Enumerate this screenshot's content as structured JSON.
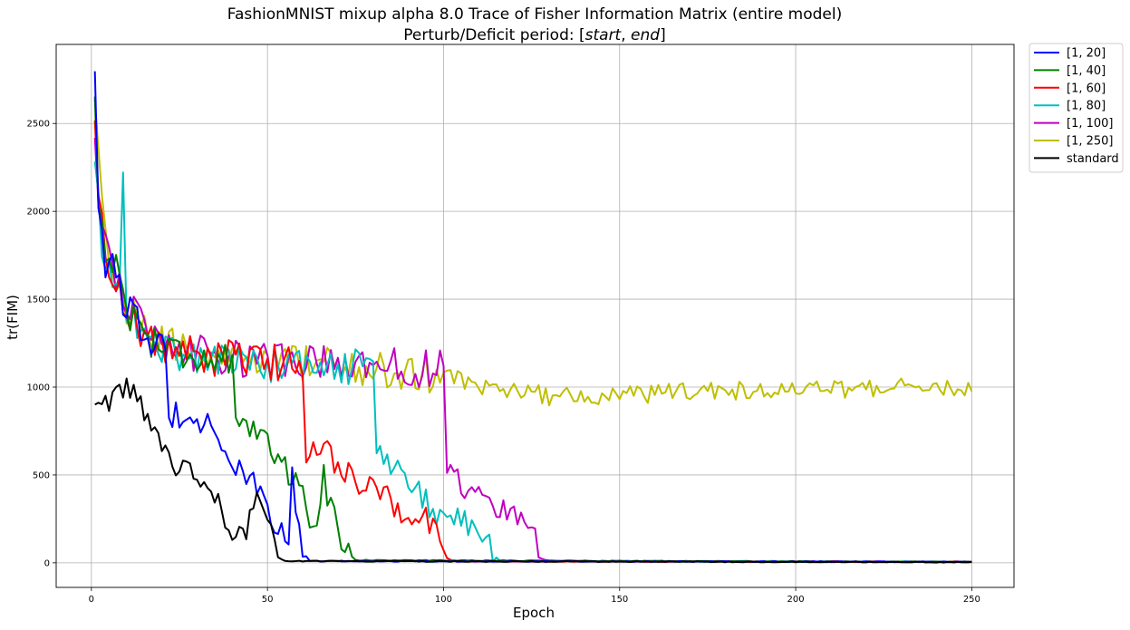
{
  "chart_data": {
    "type": "line",
    "title_line1": "FashionMNIST mixup alpha 8.0 Trace of Fisher Information Matrix (entire model)",
    "title_line2_prefix": "Perturb/Deficit period: [",
    "title_line2_start": "start",
    "title_line2_sep": ", ",
    "title_line2_end": "end",
    "title_line2_suffix": "]",
    "xlabel": "Epoch",
    "ylabel": "tr(FIM)",
    "xlim": [
      -10,
      262
    ],
    "ylim": [
      -140,
      2950
    ],
    "xticks": [
      0,
      50,
      100,
      150,
      200,
      250
    ],
    "yticks": [
      0,
      500,
      1000,
      1500,
      2000,
      2500
    ],
    "grid": true,
    "legend_position": "outside-top-right",
    "series": [
      {
        "name": "[1, 20]",
        "color": "#0000ff",
        "deficit_end": 20,
        "anchors": [
          [
            1,
            2810
          ],
          [
            2,
            2100
          ],
          [
            4,
            1720
          ],
          [
            6,
            1650
          ],
          [
            8,
            1600
          ],
          [
            10,
            1420
          ],
          [
            12,
            1400
          ],
          [
            14,
            1330
          ],
          [
            16,
            1270
          ],
          [
            18,
            1240
          ],
          [
            20,
            1210
          ],
          [
            21,
            1190
          ],
          [
            22,
            800
          ],
          [
            24,
            860
          ],
          [
            26,
            820
          ],
          [
            28,
            900
          ],
          [
            30,
            800
          ],
          [
            32,
            820
          ],
          [
            34,
            790
          ],
          [
            36,
            720
          ],
          [
            38,
            640
          ],
          [
            40,
            560
          ],
          [
            42,
            510
          ],
          [
            44,
            490
          ],
          [
            46,
            440
          ],
          [
            48,
            380
          ],
          [
            50,
            320
          ],
          [
            52,
            240
          ],
          [
            54,
            180
          ],
          [
            56,
            150
          ],
          [
            57,
            470
          ],
          [
            58,
            340
          ],
          [
            59,
            150
          ],
          [
            60,
            60
          ],
          [
            62,
            10
          ],
          [
            250,
            5
          ]
        ]
      },
      {
        "name": "[1, 40]",
        "color": "#008000",
        "deficit_end": 40,
        "anchors": [
          [
            1,
            2650
          ],
          [
            2,
            2050
          ],
          [
            4,
            1780
          ],
          [
            6,
            1740
          ],
          [
            8,
            1600
          ],
          [
            10,
            1480
          ],
          [
            12,
            1380
          ],
          [
            14,
            1330
          ],
          [
            16,
            1290
          ],
          [
            20,
            1240
          ],
          [
            24,
            1220
          ],
          [
            28,
            1190
          ],
          [
            32,
            1170
          ],
          [
            36,
            1160
          ],
          [
            40,
            1150
          ],
          [
            41,
            760
          ],
          [
            42,
            710
          ],
          [
            44,
            780
          ],
          [
            46,
            740
          ],
          [
            48,
            780
          ],
          [
            50,
            720
          ],
          [
            52,
            640
          ],
          [
            54,
            560
          ],
          [
            56,
            510
          ],
          [
            58,
            480
          ],
          [
            60,
            470
          ],
          [
            61,
            300
          ],
          [
            63,
            240
          ],
          [
            65,
            320
          ],
          [
            66,
            490
          ],
          [
            67,
            380
          ],
          [
            69,
            260
          ],
          [
            71,
            150
          ],
          [
            73,
            60
          ],
          [
            75,
            15
          ],
          [
            250,
            5
          ]
        ]
      },
      {
        "name": "[1, 60]",
        "color": "#ff0000",
        "deficit_end": 60,
        "anchors": [
          [
            1,
            2500
          ],
          [
            2,
            2050
          ],
          [
            4,
            1780
          ],
          [
            6,
            1640
          ],
          [
            8,
            1560
          ],
          [
            10,
            1460
          ],
          [
            12,
            1380
          ],
          [
            14,
            1320
          ],
          [
            16,
            1280
          ],
          [
            20,
            1230
          ],
          [
            30,
            1180
          ],
          [
            40,
            1160
          ],
          [
            50,
            1140
          ],
          [
            60,
            1130
          ],
          [
            61,
            620
          ],
          [
            63,
            640
          ],
          [
            65,
            680
          ],
          [
            67,
            640
          ],
          [
            69,
            580
          ],
          [
            71,
            560
          ],
          [
            73,
            500
          ],
          [
            75,
            470
          ],
          [
            77,
            440
          ],
          [
            79,
            420
          ],
          [
            81,
            400
          ],
          [
            83,
            380
          ],
          [
            85,
            350
          ],
          [
            87,
            320
          ],
          [
            89,
            280
          ],
          [
            91,
            230
          ],
          [
            93,
            180
          ],
          [
            95,
            250
          ],
          [
            97,
            220
          ],
          [
            99,
            150
          ],
          [
            100,
            60
          ],
          [
            101,
            25
          ],
          [
            103,
            8
          ],
          [
            250,
            5
          ]
        ]
      },
      {
        "name": "[1, 80]",
        "color": "#00bfbf",
        "deficit_end": 80,
        "anchors": [
          [
            1,
            2250
          ],
          [
            2,
            2000
          ],
          [
            4,
            1680
          ],
          [
            6,
            1600
          ],
          [
            8,
            1520
          ],
          [
            9,
            2200
          ],
          [
            10,
            1450
          ],
          [
            12,
            1380
          ],
          [
            14,
            1310
          ],
          [
            16,
            1260
          ],
          [
            20,
            1220
          ],
          [
            30,
            1170
          ],
          [
            40,
            1150
          ],
          [
            50,
            1130
          ],
          [
            60,
            1120
          ],
          [
            70,
            1110
          ],
          [
            80,
            1100
          ],
          [
            81,
            600
          ],
          [
            83,
            620
          ],
          [
            85,
            560
          ],
          [
            87,
            520
          ],
          [
            89,
            480
          ],
          [
            91,
            440
          ],
          [
            93,
            400
          ],
          [
            95,
            350
          ],
          [
            97,
            300
          ],
          [
            99,
            280
          ],
          [
            101,
            260
          ],
          [
            103,
            240
          ],
          [
            105,
            230
          ],
          [
            107,
            220
          ],
          [
            109,
            210
          ],
          [
            111,
            190
          ],
          [
            113,
            150
          ],
          [
            114,
            50
          ],
          [
            116,
            10
          ],
          [
            250,
            5
          ]
        ]
      },
      {
        "name": "[1, 100]",
        "color": "#bf00bf",
        "deficit_end": 100,
        "anchors": [
          [
            1,
            2370
          ],
          [
            2,
            2100
          ],
          [
            4,
            1850
          ],
          [
            6,
            1700
          ],
          [
            8,
            1600
          ],
          [
            10,
            1500
          ],
          [
            12,
            1420
          ],
          [
            14,
            1340
          ],
          [
            16,
            1280
          ],
          [
            20,
            1230
          ],
          [
            30,
            1190
          ],
          [
            40,
            1160
          ],
          [
            50,
            1150
          ],
          [
            60,
            1140
          ],
          [
            70,
            1130
          ],
          [
            80,
            1120
          ],
          [
            90,
            1110
          ],
          [
            100,
            1100
          ],
          [
            101,
            560
          ],
          [
            103,
            470
          ],
          [
            105,
            450
          ],
          [
            107,
            420
          ],
          [
            109,
            400
          ],
          [
            111,
            380
          ],
          [
            113,
            360
          ],
          [
            115,
            330
          ],
          [
            117,
            300
          ],
          [
            119,
            290
          ],
          [
            121,
            270
          ],
          [
            123,
            260
          ],
          [
            125,
            250
          ],
          [
            127,
            30
          ],
          [
            129,
            15
          ],
          [
            131,
            12
          ],
          [
            133,
            10
          ],
          [
            250,
            6
          ]
        ]
      },
      {
        "name": "[1, 250]",
        "color": "#bfbf00",
        "deficit_end": 250,
        "anchors": [
          [
            1,
            2570
          ],
          [
            2,
            2350
          ],
          [
            4,
            1850
          ],
          [
            6,
            1620
          ],
          [
            8,
            1520
          ],
          [
            10,
            1460
          ],
          [
            12,
            1390
          ],
          [
            14,
            1330
          ],
          [
            16,
            1280
          ],
          [
            20,
            1240
          ],
          [
            30,
            1200
          ],
          [
            40,
            1170
          ],
          [
            50,
            1150
          ],
          [
            60,
            1130
          ],
          [
            70,
            1110
          ],
          [
            80,
            1090
          ],
          [
            90,
            1080
          ],
          [
            100,
            1060
          ],
          [
            110,
            1010
          ],
          [
            120,
            980
          ],
          [
            130,
            950
          ],
          [
            140,
            940
          ],
          [
            150,
            950
          ],
          [
            160,
            960
          ],
          [
            170,
            970
          ],
          [
            180,
            975
          ],
          [
            190,
            980
          ],
          [
            200,
            985
          ],
          [
            210,
            990
          ],
          [
            220,
            995
          ],
          [
            230,
            995
          ],
          [
            240,
            990
          ],
          [
            250,
            1000
          ]
        ]
      },
      {
        "name": "standard",
        "color": "#000000",
        "deficit_end": 0,
        "anchors": [
          [
            1,
            850
          ],
          [
            3,
            880
          ],
          [
            5,
            920
          ],
          [
            7,
            960
          ],
          [
            9,
            990
          ],
          [
            11,
            970
          ],
          [
            13,
            920
          ],
          [
            15,
            870
          ],
          [
            17,
            800
          ],
          [
            19,
            700
          ],
          [
            21,
            600
          ],
          [
            23,
            540
          ],
          [
            25,
            580
          ],
          [
            27,
            560
          ],
          [
            29,
            480
          ],
          [
            31,
            440
          ],
          [
            33,
            410
          ],
          [
            35,
            380
          ],
          [
            37,
            300
          ],
          [
            39,
            230
          ],
          [
            41,
            170
          ],
          [
            43,
            160
          ],
          [
            45,
            240
          ],
          [
            47,
            340
          ],
          [
            49,
            290
          ],
          [
            51,
            150
          ],
          [
            53,
            30
          ],
          [
            55,
            10
          ],
          [
            250,
            3
          ]
        ]
      }
    ]
  }
}
